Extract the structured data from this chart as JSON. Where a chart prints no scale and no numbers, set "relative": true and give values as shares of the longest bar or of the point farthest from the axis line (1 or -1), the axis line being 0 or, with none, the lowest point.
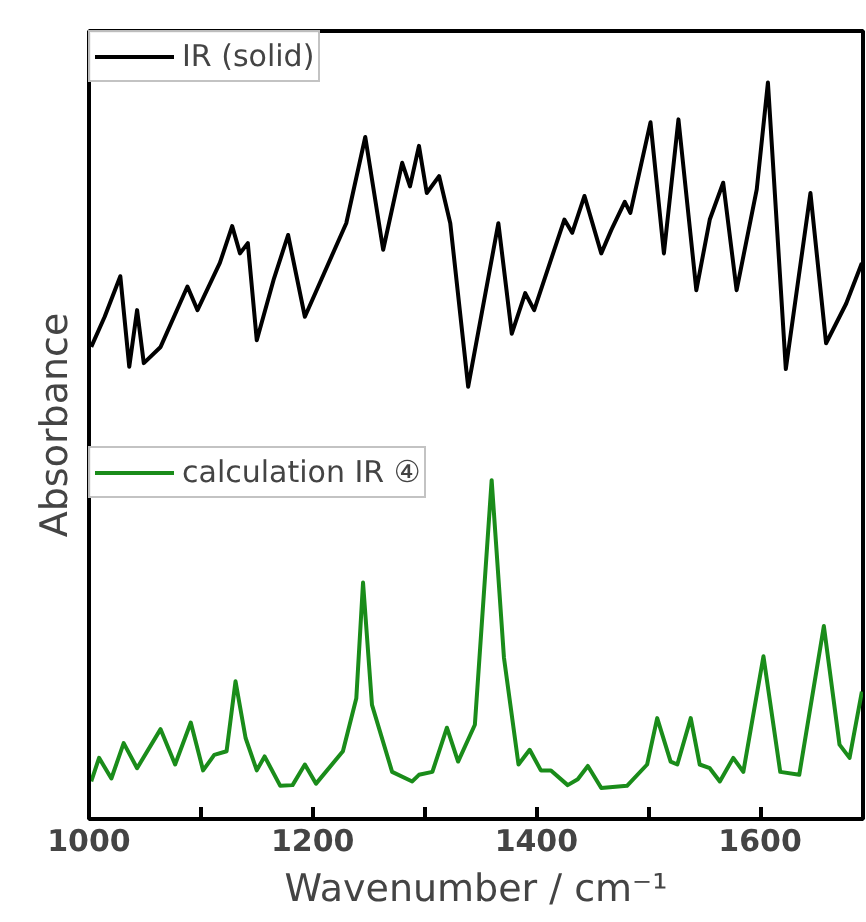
{
  "chart_data": {
    "type": "line",
    "relative": true,
    "xlabel": "Wavenumber / cm⁻¹",
    "ylabel": "Absorbance",
    "xlim": [
      1000,
      1692
    ],
    "xticks": [
      1000,
      {
        "value": 1100,
        "label": null
      },
      1200,
      {
        "value": 1300,
        "label": null
      },
      1400,
      {
        "value": 1500,
        "label": null
      },
      1600
    ],
    "legend": "top left",
    "grid": false,
    "marker": "none",
    "line_style": "solid",
    "series": [
      {
        "name": "IR (solid)",
        "color": "#000000",
        "x": [
          1002,
          1014,
          1028,
          1036,
          1043,
          1049,
          1064,
          1088,
          1097,
          1117,
          1128,
          1135,
          1142,
          1150,
          1165,
          1178,
          1193,
          1230,
          1247,
          1263,
          1280,
          1287,
          1295,
          1302,
          1313,
          1323,
          1339,
          1366,
          1378,
          1390,
          1398,
          1425,
          1432,
          1443,
          1458,
          1467,
          1479,
          1484,
          1502,
          1514,
          1527,
          1543,
          1555,
          1567,
          1579,
          1597,
          1607,
          1623,
          1645,
          1659,
          1677,
          1691
        ],
        "values": [
          0.641,
          0.682,
          0.737,
          0.614,
          0.691,
          0.619,
          0.641,
          0.723,
          0.691,
          0.755,
          0.805,
          0.768,
          0.782,
          0.65,
          0.732,
          0.793,
          0.682,
          0.809,
          0.926,
          0.773,
          0.891,
          0.859,
          0.914,
          0.85,
          0.873,
          0.809,
          0.587,
          0.809,
          0.659,
          0.714,
          0.691,
          0.814,
          0.796,
          0.846,
          0.768,
          0.8,
          0.838,
          0.823,
          0.946,
          0.768,
          0.95,
          0.718,
          0.814,
          0.864,
          0.718,
          0.855,
          1.0,
          0.611,
          0.85,
          0.646,
          0.7,
          0.755
        ]
      },
      {
        "name": "calculation IR ④",
        "color": "#1a8c1a",
        "x": [
          1002,
          1009,
          1020,
          1031,
          1043,
          1064,
          1077,
          1091,
          1102,
          1112,
          1123,
          1131,
          1140,
          1150,
          1157,
          1171,
          1182,
          1193,
          1203,
          1227,
          1239,
          1245,
          1253,
          1271,
          1289,
          1295,
          1307,
          1320,
          1330,
          1345,
          1360,
          1371,
          1384,
          1394,
          1404,
          1413,
          1428,
          1437,
          1446,
          1458,
          1481,
          1499,
          1508,
          1520,
          1526,
          1538,
          1546,
          1555,
          1564,
          1576,
          1585,
          1603,
          1618,
          1635,
          1657,
          1671,
          1680,
          1691
        ],
        "values": [
          0.051,
          0.083,
          0.055,
          0.103,
          0.069,
          0.122,
          0.074,
          0.131,
          0.066,
          0.087,
          0.092,
          0.187,
          0.11,
          0.066,
          0.085,
          0.045,
          0.046,
          0.074,
          0.048,
          0.092,
          0.164,
          0.321,
          0.155,
          0.064,
          0.051,
          0.06,
          0.064,
          0.124,
          0.078,
          0.128,
          0.46,
          0.219,
          0.074,
          0.094,
          0.066,
          0.066,
          0.046,
          0.054,
          0.072,
          0.042,
          0.045,
          0.074,
          0.137,
          0.078,
          0.074,
          0.137,
          0.074,
          0.069,
          0.051,
          0.083,
          0.064,
          0.221,
          0.064,
          0.06,
          0.262,
          0.101,
          0.083,
          0.173
        ]
      }
    ]
  }
}
